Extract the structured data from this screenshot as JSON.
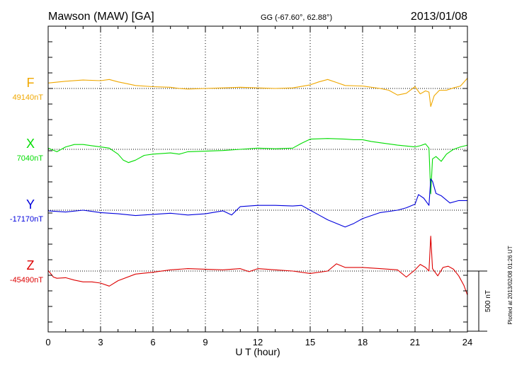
{
  "header": {
    "station": "Mawson (MAW)  [GA]",
    "coords": "GG (-67.60°,  62.88°)",
    "date": "2013/01/08"
  },
  "side_note": "Plotted at 2013/02/08 01:26 UT",
  "scale_bar_label": "500 nT",
  "colors": {
    "F": "#f0a800",
    "X": "#00dd00",
    "Y": "#0000dd",
    "Z": "#dd0000",
    "axis": "#000000",
    "grid": "#000000"
  },
  "chart_data": {
    "type": "line",
    "title": "Mawson (MAW)  [GA]",
    "xlabel": "U T (hour)",
    "xlim": [
      0,
      24
    ],
    "x_ticks": [
      0,
      3,
      6,
      9,
      12,
      15,
      18,
      21,
      24
    ],
    "x_tick_labels": [
      "0",
      "3",
      "6",
      "9",
      "12",
      "15",
      "18",
      "21",
      "24"
    ],
    "grid": true,
    "units": "nT",
    "scale_bar_nT": 500,
    "series": [
      {
        "name": "F",
        "baseline_label": "49140nT",
        "x": [
          0,
          1,
          2,
          3,
          3.5,
          4,
          4.5,
          5,
          6,
          7,
          7.5,
          8,
          9,
          10,
          11,
          12,
          13,
          14,
          15,
          15.5,
          16,
          16.5,
          17,
          18,
          19,
          19.5,
          20,
          20.5,
          21,
          21.3,
          21.6,
          21.8,
          21.9,
          22.1,
          22.4,
          22.8,
          23.2,
          23.6,
          24
        ],
        "y": [
          45,
          60,
          70,
          65,
          75,
          55,
          40,
          25,
          15,
          10,
          0,
          -5,
          0,
          5,
          10,
          5,
          0,
          5,
          30,
          55,
          75,
          50,
          25,
          20,
          0,
          -15,
          -55,
          -40,
          15,
          -45,
          -20,
          -30,
          -150,
          -60,
          -15,
          -15,
          5,
          20,
          85
        ]
      },
      {
        "name": "X",
        "baseline_label": "7040nT",
        "x": [
          0,
          0.5,
          1,
          1.5,
          2,
          2.5,
          3,
          3.5,
          4,
          4.3,
          4.6,
          5,
          5.5,
          6,
          7,
          7.5,
          8,
          9,
          10,
          11,
          12,
          13,
          14,
          14.5,
          15,
          16,
          17,
          17.5,
          18,
          18.5,
          19,
          20,
          21,
          21.3,
          21.6,
          21.8,
          21.9,
          22,
          22.2,
          22.5,
          22.8,
          23.2,
          23.6,
          24
        ],
        "y": [
          10,
          -20,
          20,
          40,
          40,
          30,
          20,
          10,
          -40,
          -90,
          -110,
          -90,
          -50,
          -40,
          -30,
          -40,
          -20,
          -15,
          -10,
          0,
          10,
          5,
          10,
          50,
          85,
          90,
          85,
          80,
          80,
          65,
          55,
          35,
          20,
          30,
          45,
          10,
          -370,
          -80,
          -60,
          -100,
          -40,
          0,
          20,
          35
        ]
      },
      {
        "name": "Y",
        "baseline_label": "-17170nT",
        "x": [
          0,
          1,
          2,
          3,
          4,
          5,
          6,
          7,
          8,
          9,
          10,
          10.5,
          11,
          12,
          13,
          14,
          14.5,
          15,
          15.5,
          16,
          17,
          17.5,
          18,
          19,
          20,
          20.5,
          21,
          21.2,
          21.5,
          21.8,
          21.9,
          22,
          22.2,
          22.5,
          23,
          23.5,
          24
        ],
        "y": [
          -5,
          -15,
          0,
          -20,
          -30,
          -45,
          -35,
          -25,
          -40,
          -30,
          -5,
          -40,
          30,
          40,
          40,
          35,
          40,
          0,
          -40,
          -80,
          -140,
          -110,
          -70,
          -20,
          0,
          20,
          50,
          130,
          100,
          40,
          260,
          240,
          140,
          120,
          60,
          80,
          80
        ]
      },
      {
        "name": "Z",
        "baseline_label": "-45490nT",
        "x": [
          0,
          0.3,
          0.5,
          1,
          1.5,
          2,
          2.5,
          3,
          3.5,
          4,
          5,
          6,
          7,
          8,
          9,
          10,
          11,
          11.5,
          12,
          13,
          14,
          15,
          16,
          16.5,
          17,
          18,
          19,
          20,
          20.5,
          21,
          21.3,
          21.6,
          21.8,
          21.9,
          22,
          22.3,
          22.6,
          22.9,
          23.2,
          23.5,
          23.8,
          24
        ],
        "y": [
          5,
          -50,
          -60,
          -55,
          -75,
          -90,
          -90,
          -100,
          -125,
          -80,
          -25,
          -10,
          10,
          20,
          15,
          10,
          20,
          -5,
          20,
          10,
          0,
          -20,
          0,
          60,
          30,
          30,
          20,
          10,
          -50,
          10,
          55,
          30,
          0,
          290,
          20,
          -40,
          30,
          40,
          15,
          -40,
          -120,
          -200
        ]
      }
    ]
  }
}
